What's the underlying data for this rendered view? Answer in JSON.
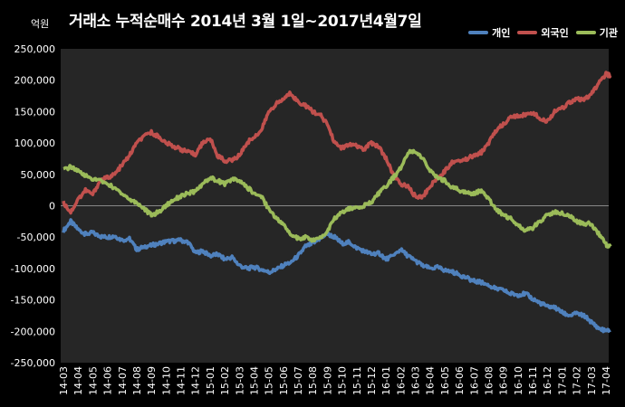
{
  "chart_data": {
    "type": "line",
    "title": "거래소 누적순매수 2014년 3월 1일~2017년4월7일",
    "unit_label": "억원",
    "categories": [
      "14-03",
      "14-04",
      "14-05",
      "14-06",
      "14-07",
      "14-08",
      "14-09",
      "14-10",
      "14-11",
      "14-12",
      "15-01",
      "15-02",
      "15-03",
      "15-04",
      "15-05",
      "15-06",
      "15-07",
      "15-08",
      "15-09",
      "15-10",
      "15-11",
      "15-12",
      "16-01",
      "16-02",
      "16-03",
      "16-04",
      "16-05",
      "16-06",
      "16-07",
      "16-08",
      "16-09",
      "16-10",
      "16-11",
      "16-12",
      "17-01",
      "17-02",
      "17-03",
      "17-04"
    ],
    "ylim": [
      -250000,
      250000
    ],
    "y_ticks": [
      250000,
      200000,
      150000,
      100000,
      50000,
      0,
      -50000,
      -100000,
      -150000,
      -200000,
      -250000
    ],
    "y_tick_labels": [
      "250,000",
      "200,000",
      "150,000",
      "100,000",
      "50,000",
      "0",
      "-50,000",
      "-100,000",
      "-150,000",
      "-200,000",
      "-250,000"
    ],
    "grid": false,
    "legend_position": "top-right",
    "series": [
      {
        "name": "개인",
        "color": "#4f81bd",
        "points": [
          [
            0,
            -40000
          ],
          [
            0.5,
            -25000
          ],
          [
            1,
            -38000
          ],
          [
            1.5,
            -45000
          ],
          [
            2,
            -43000
          ],
          [
            2.5,
            -49000
          ],
          [
            3,
            -50000
          ],
          [
            3.5,
            -48000
          ],
          [
            4,
            -55000
          ],
          [
            4.5,
            -52000
          ],
          [
            5,
            -70000
          ],
          [
            5.5,
            -65000
          ],
          [
            6,
            -63000
          ],
          [
            6.5,
            -60000
          ],
          [
            7,
            -57000
          ],
          [
            7.5,
            -56000
          ],
          [
            8,
            -55000
          ],
          [
            8.5,
            -58000
          ],
          [
            9,
            -75000
          ],
          [
            9.5,
            -72000
          ],
          [
            10,
            -80000
          ],
          [
            10.5,
            -77000
          ],
          [
            11,
            -85000
          ],
          [
            11.5,
            -82000
          ],
          [
            12,
            -95000
          ],
          [
            12.5,
            -100000
          ],
          [
            13,
            -98000
          ],
          [
            13.5,
            -101000
          ],
          [
            14,
            -106000
          ],
          [
            14.5,
            -102000
          ],
          [
            15,
            -95000
          ],
          [
            15.5,
            -90000
          ],
          [
            16,
            -80000
          ],
          [
            16.5,
            -65000
          ],
          [
            17,
            -60000
          ],
          [
            17.5,
            -52000
          ],
          [
            18,
            -45000
          ],
          [
            18.5,
            -50000
          ],
          [
            19,
            -60000
          ],
          [
            19.5,
            -58000
          ],
          [
            20,
            -67000
          ],
          [
            20.5,
            -72000
          ],
          [
            21,
            -77000
          ],
          [
            21.5,
            -75000
          ],
          [
            22,
            -85000
          ],
          [
            22.5,
            -80000
          ],
          [
            23,
            -70000
          ],
          [
            23.5,
            -80000
          ],
          [
            24,
            -88000
          ],
          [
            24.5,
            -95000
          ],
          [
            25,
            -100000
          ],
          [
            25.5,
            -98000
          ],
          [
            26,
            -103000
          ],
          [
            26.5,
            -105000
          ],
          [
            27,
            -110000
          ],
          [
            27.5,
            -115000
          ],
          [
            28,
            -120000
          ],
          [
            28.5,
            -122000
          ],
          [
            29,
            -127000
          ],
          [
            29.5,
            -132000
          ],
          [
            30,
            -135000
          ],
          [
            30.5,
            -140000
          ],
          [
            31,
            -142000
          ],
          [
            31.5,
            -140000
          ],
          [
            32,
            -148000
          ],
          [
            32.5,
            -155000
          ],
          [
            33,
            -160000
          ],
          [
            33.5,
            -162000
          ],
          [
            34,
            -170000
          ],
          [
            34.5,
            -175000
          ],
          [
            35,
            -172000
          ],
          [
            35.5,
            -175000
          ],
          [
            36,
            -185000
          ],
          [
            36.5,
            -195000
          ],
          [
            37,
            -200000
          ],
          [
            37.3,
            -198000
          ]
        ]
      },
      {
        "name": "외국인",
        "color": "#c0504d",
        "points": [
          [
            0,
            5000
          ],
          [
            0.5,
            -10000
          ],
          [
            1,
            10000
          ],
          [
            1.5,
            25000
          ],
          [
            2,
            18000
          ],
          [
            2.5,
            40000
          ],
          [
            3,
            45000
          ],
          [
            3.5,
            50000
          ],
          [
            4,
            65000
          ],
          [
            4.5,
            80000
          ],
          [
            5,
            100000
          ],
          [
            5.5,
            110000
          ],
          [
            6,
            117000
          ],
          [
            6.5,
            110000
          ],
          [
            7,
            100000
          ],
          [
            7.5,
            95000
          ],
          [
            8,
            90000
          ],
          [
            8.5,
            85000
          ],
          [
            9,
            82000
          ],
          [
            9.5,
            100000
          ],
          [
            10,
            108000
          ],
          [
            10.5,
            80000
          ],
          [
            11,
            72000
          ],
          [
            11.5,
            72000
          ],
          [
            12,
            80000
          ],
          [
            12.5,
            100000
          ],
          [
            13,
            110000
          ],
          [
            13.5,
            120000
          ],
          [
            14,
            150000
          ],
          [
            14.5,
            162000
          ],
          [
            15,
            170000
          ],
          [
            15.5,
            180000
          ],
          [
            16,
            165000
          ],
          [
            16.5,
            160000
          ],
          [
            17,
            150000
          ],
          [
            17.5,
            145000
          ],
          [
            18,
            130000
          ],
          [
            18.5,
            100000
          ],
          [
            19,
            92000
          ],
          [
            19.5,
            97000
          ],
          [
            20,
            95000
          ],
          [
            20.5,
            90000
          ],
          [
            21,
            100000
          ],
          [
            21.5,
            95000
          ],
          [
            22,
            75000
          ],
          [
            22.5,
            50000
          ],
          [
            23,
            35000
          ],
          [
            23.5,
            30000
          ],
          [
            24,
            15000
          ],
          [
            24.5,
            15000
          ],
          [
            25,
            30000
          ],
          [
            25.5,
            45000
          ],
          [
            26,
            55000
          ],
          [
            26.5,
            70000
          ],
          [
            27,
            72000
          ],
          [
            27.5,
            75000
          ],
          [
            28,
            80000
          ],
          [
            28.5,
            85000
          ],
          [
            29,
            100000
          ],
          [
            29.5,
            120000
          ],
          [
            30,
            130000
          ],
          [
            30.5,
            140000
          ],
          [
            31,
            143000
          ],
          [
            31.5,
            145000
          ],
          [
            32,
            148000
          ],
          [
            32.5,
            140000
          ],
          [
            33,
            135000
          ],
          [
            33.5,
            150000
          ],
          [
            34,
            155000
          ],
          [
            34.5,
            165000
          ],
          [
            35,
            170000
          ],
          [
            35.5,
            168000
          ],
          [
            36,
            178000
          ],
          [
            36.5,
            195000
          ],
          [
            37,
            210000
          ],
          [
            37.3,
            207000
          ]
        ]
      },
      {
        "name": "기관",
        "color": "#9bbb59",
        "points": [
          [
            0,
            57000
          ],
          [
            0.5,
            62000
          ],
          [
            1,
            55000
          ],
          [
            1.5,
            48000
          ],
          [
            2,
            42000
          ],
          [
            2.5,
            40000
          ],
          [
            3,
            35000
          ],
          [
            3.5,
            28000
          ],
          [
            4,
            20000
          ],
          [
            4.5,
            10000
          ],
          [
            5,
            5000
          ],
          [
            5.5,
            -5000
          ],
          [
            6,
            -15000
          ],
          [
            6.5,
            -10000
          ],
          [
            7,
            0
          ],
          [
            7.5,
            10000
          ],
          [
            8,
            15000
          ],
          [
            8.5,
            20000
          ],
          [
            9,
            22000
          ],
          [
            9.5,
            35000
          ],
          [
            10,
            45000
          ],
          [
            10.5,
            40000
          ],
          [
            11,
            35000
          ],
          [
            11.5,
            42000
          ],
          [
            12,
            40000
          ],
          [
            12.5,
            30000
          ],
          [
            13,
            20000
          ],
          [
            13.5,
            15000
          ],
          [
            14,
            -5000
          ],
          [
            14.5,
            -20000
          ],
          [
            15,
            -30000
          ],
          [
            15.5,
            -45000
          ],
          [
            16,
            -52000
          ],
          [
            16.5,
            -50000
          ],
          [
            17,
            -55000
          ],
          [
            17.5,
            -52000
          ],
          [
            18,
            -40000
          ],
          [
            18.5,
            -20000
          ],
          [
            19,
            -10000
          ],
          [
            19.5,
            -5000
          ],
          [
            20,
            -2000
          ],
          [
            20.5,
            0
          ],
          [
            21,
            5000
          ],
          [
            21.5,
            20000
          ],
          [
            22,
            30000
          ],
          [
            22.5,
            45000
          ],
          [
            23,
            60000
          ],
          [
            23.5,
            85000
          ],
          [
            24,
            88000
          ],
          [
            24.5,
            75000
          ],
          [
            25,
            55000
          ],
          [
            25.5,
            45000
          ],
          [
            26,
            40000
          ],
          [
            26.5,
            30000
          ],
          [
            27,
            25000
          ],
          [
            27.5,
            20000
          ],
          [
            28,
            20000
          ],
          [
            28.5,
            25000
          ],
          [
            29,
            10000
          ],
          [
            29.5,
            -5000
          ],
          [
            30,
            -15000
          ],
          [
            30.5,
            -20000
          ],
          [
            31,
            -30000
          ],
          [
            31.5,
            -40000
          ],
          [
            32,
            -35000
          ],
          [
            32.5,
            -25000
          ],
          [
            33,
            -15000
          ],
          [
            33.5,
            -10000
          ],
          [
            34,
            -12000
          ],
          [
            34.5,
            -15000
          ],
          [
            35,
            -25000
          ],
          [
            35.5,
            -30000
          ],
          [
            36,
            -28000
          ],
          [
            36.5,
            -45000
          ],
          [
            37,
            -62000
          ],
          [
            37.3,
            -65000
          ]
        ]
      }
    ]
  }
}
